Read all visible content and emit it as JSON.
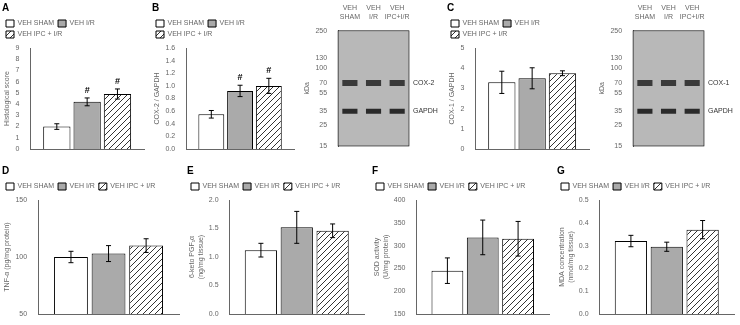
{
  "chart_data": [
    {
      "type": "bar",
      "title": "A",
      "ylabel": "Histological score",
      "categories": [
        null
      ],
      "series": [
        {
          "name": "VEH SHAM",
          "color": "white",
          "values": [
            2.0
          ],
          "errors": [
            0.25
          ]
        },
        {
          "name": "VEH I/R",
          "color": "#aaaaaa",
          "values": [
            4.2
          ],
          "errors": [
            0.35
          ]
        },
        {
          "name": "VEH IPC + I/R",
          "color": "white",
          "values": [
            4.9
          ],
          "errors": [
            0.45
          ]
        }
      ],
      "annotations": [
        {
          "text": "#",
          "series": "VEH I/R"
        },
        {
          "text": "#",
          "series": "VEH IPC + I/R"
        }
      ],
      "ylim": [
        0,
        9
      ],
      "yticks": [
        0,
        1,
        2,
        3,
        4,
        5,
        6,
        7,
        8,
        9
      ],
      "grid": false,
      "legend": "upper left",
      "tick_labels": "y"
    },
    {
      "type": "bar",
      "title": "B",
      "ylabel": "COX-2 / GAPDH",
      "categories": [
        null
      ],
      "series": [
        {
          "name": "VEH SHAM",
          "color": "white",
          "values": [
            0.55
          ],
          "errors": [
            0.06
          ]
        },
        {
          "name": "VEH I/R",
          "color": "#aaaaaa",
          "values": [
            0.92
          ],
          "errors": [
            0.09
          ]
        },
        {
          "name": "VEH IPC + I/R",
          "color": "white",
          "values": [
            1.0
          ],
          "errors": [
            0.12
          ]
        }
      ],
      "annotations": [
        {
          "text": "#",
          "series": "VEH I/R"
        },
        {
          "text": "#",
          "series": "VEH IPC + I/R"
        }
      ],
      "ylim": [
        0.0,
        1.6
      ],
      "yticks": [
        {
          "value": 0,
          "label": "0.0"
        },
        0.2,
        0.4,
        0.6,
        0.8,
        {
          "value": 1,
          "label": "1.0"
        },
        1.2,
        1.4,
        1.6
      ],
      "grid": false,
      "legend": "upper left",
      "tick_labels": "y"
    },
    {
      "type": "blot",
      "ylabel": "kDa",
      "categories": [
        "VEH\nSHAM",
        "VEH\nI/R",
        "VEH\nIPC+I/R"
      ],
      "series": [
        {
          "name": "COX-2",
          "color": "#3a3a3a",
          "values": [
            70,
            70,
            70
          ]
        },
        {
          "name": "GAPDH",
          "color": "#2a2a2a",
          "values": [
            35,
            35,
            35
          ]
        }
      ],
      "log": "y",
      "ylim": [
        15,
        250
      ],
      "yticks": [
        250,
        130,
        100,
        70,
        55,
        35,
        25,
        15
      ],
      "color": "#b8b8b8",
      "grid": false
    },
    {
      "type": "bar",
      "title": "C",
      "ylabel": "COX-1 / GAPDH",
      "categories": [
        null
      ],
      "series": [
        {
          "name": "VEH SHAM",
          "color": "white",
          "values": [
            3.3
          ],
          "errors": [
            0.55
          ]
        },
        {
          "name": "VEH I/R",
          "color": "#aaaaaa",
          "values": [
            3.5
          ],
          "errors": [
            0.52
          ]
        },
        {
          "name": "VEH IPC + I/R",
          "color": "white",
          "values": [
            3.75
          ],
          "errors": [
            0.12
          ]
        }
      ],
      "ylim": [
        0,
        5
      ],
      "yticks": [
        0,
        1,
        2,
        3,
        4,
        5
      ],
      "grid": false,
      "legend": "upper left",
      "tick_labels": "y"
    },
    {
      "type": "blot",
      "ylabel": "kDa",
      "categories": [
        "VEH\nSHAM",
        "VEH\nI/R",
        "VEH\nIPC+I/R"
      ],
      "series": [
        {
          "name": "COX-1",
          "color": "#3a3a3a",
          "values": [
            70,
            70,
            70
          ]
        },
        {
          "name": "GAPDH",
          "color": "#2a2a2a",
          "values": [
            35,
            35,
            35
          ]
        }
      ],
      "log": "y",
      "ylim": [
        15,
        250
      ],
      "yticks": [
        250,
        130,
        100,
        70,
        55,
        35,
        25,
        15
      ],
      "color": "#b8b8b8",
      "grid": false
    },
    {
      "type": "bar",
      "title": "D",
      "ylabel": "TNF-α (pg/mg protein)",
      "categories": [
        null
      ],
      "series": [
        {
          "name": "VEH SHAM",
          "color": "white",
          "values": [
            100
          ],
          "errors": [
            5
          ]
        },
        {
          "name": "VEH I/R",
          "color": "#aaaaaa",
          "values": [
            103
          ],
          "errors": [
            7
          ]
        },
        {
          "name": "VEH IPC + I/R",
          "color": "white",
          "values": [
            110
          ],
          "errors": [
            6
          ]
        }
      ],
      "ylim": [
        50,
        150
      ],
      "yticks": [
        50,
        100,
        150
      ],
      "grid": false,
      "legend": "upper left",
      "tick_labels": "y"
    },
    {
      "type": "bar",
      "title": "E",
      "ylabel": "6-keto PGF₁α\n(ng/mg tissue)",
      "categories": [
        null
      ],
      "series": [
        {
          "name": "VEH SHAM",
          "color": "white",
          "values": [
            1.12
          ],
          "errors": [
            0.12
          ]
        },
        {
          "name": "VEH I/R",
          "color": "#aaaaaa",
          "values": [
            1.52
          ],
          "errors": [
            0.28
          ]
        },
        {
          "name": "VEH IPC + I/R",
          "color": "white",
          "values": [
            1.46
          ],
          "errors": [
            0.12
          ]
        }
      ],
      "ylim": [
        0.0,
        2.0
      ],
      "yticks": [
        {
          "value": 0,
          "label": "0.0"
        },
        0.5,
        {
          "value": 1,
          "label": "1.0"
        },
        1.5,
        {
          "value": 2,
          "label": "2.0"
        }
      ],
      "grid": false,
      "legend": "upper left",
      "tick_labels": "y"
    },
    {
      "type": "bar",
      "title": "F",
      "ylabel": "SOD activity\n(U/mg protein)",
      "categories": [
        null
      ],
      "series": [
        {
          "name": "VEH SHAM",
          "color": "white",
          "values": [
            245
          ],
          "errors": [
            28
          ]
        },
        {
          "name": "VEH I/R",
          "color": "#aaaaaa",
          "values": [
            318
          ],
          "errors": [
            38
          ]
        },
        {
          "name": "VEH IPC + I/R",
          "color": "white",
          "values": [
            315
          ],
          "errors": [
            38
          ]
        }
      ],
      "ylim": [
        150,
        400
      ],
      "yticks": [
        150,
        200,
        250,
        300,
        350,
        400
      ],
      "grid": false,
      "legend": "upper left",
      "tick_labels": "y"
    },
    {
      "type": "bar",
      "title": "G",
      "ylabel": "MDA concentration\n(nmol/mg tissue)",
      "categories": [
        null
      ],
      "series": [
        {
          "name": "VEH SHAM",
          "color": "white",
          "values": [
            0.32
          ],
          "errors": [
            0.025
          ]
        },
        {
          "name": "VEH I/R",
          "color": "#aaaaaa",
          "values": [
            0.295
          ],
          "errors": [
            0.02
          ]
        },
        {
          "name": "VEH IPC + I/R",
          "color": "white",
          "values": [
            0.37
          ],
          "errors": [
            0.04
          ]
        }
      ],
      "ylim": [
        0.0,
        0.5
      ],
      "yticks": [
        {
          "value": 0,
          "label": "0.0"
        },
        0.1,
        0.2,
        0.3,
        0.4,
        0.5
      ],
      "grid": false,
      "legend": "upper left",
      "tick_labels": "y"
    }
  ]
}
